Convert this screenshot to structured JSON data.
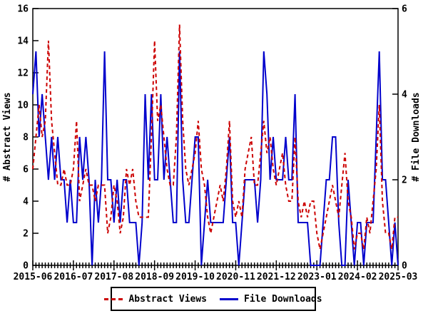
{
  "colors": {
    "abstract_views": "#cc0000",
    "file_downloads": "#0000cc",
    "axis": "#000000",
    "background": "#ffffff"
  },
  "chart_data": {
    "type": "line",
    "title": "",
    "x_axis": {
      "start_month": "2015-06",
      "end_month": "2025-03",
      "interval": "monthly",
      "n_points": 118,
      "tick_every_months": 13,
      "tick_labels": [
        "2015-06",
        "2016-07",
        "2017-08",
        "2018-09",
        "2019-10",
        "2020-11",
        "2021-12",
        "2023-01",
        "2024-02",
        "2025-03"
      ]
    },
    "y_left": {
      "label": "# Abstract Views",
      "min": 0,
      "max": 16,
      "ticks": [
        0,
        2,
        4,
        6,
        8,
        10,
        12,
        14,
        16
      ]
    },
    "y_right": {
      "label": "# File Downloads",
      "min": 0,
      "max": 6,
      "ticks": [
        0,
        2,
        4,
        6
      ]
    },
    "grid": false,
    "legend": {
      "position": "bottom",
      "border": true
    },
    "series": [
      {
        "name": "Abstract Views",
        "axis": "left",
        "style": "dashed",
        "color": "#cc0000",
        "values": [
          6,
          8,
          10,
          8,
          9,
          14,
          9,
          7,
          5,
          5,
          6,
          5,
          5,
          6,
          9,
          4,
          5,
          6,
          5,
          5,
          4,
          5,
          5,
          5,
          2,
          3,
          5,
          4,
          2,
          3,
          6,
          5,
          6,
          4,
          3,
          3,
          3,
          3,
          8,
          14,
          9,
          10,
          8,
          6,
          5,
          5,
          8,
          15,
          9,
          6,
          5,
          6,
          7,
          9,
          6,
          5,
          3,
          2,
          3,
          4,
          5,
          4,
          6,
          9,
          4,
          3,
          4,
          3,
          6,
          7,
          8,
          5,
          5,
          7,
          9,
          7,
          8,
          6,
          5,
          6,
          7,
          5,
          4,
          4,
          8,
          4,
          3,
          4,
          3,
          4,
          4,
          2,
          1,
          2,
          3,
          4,
          5,
          4,
          3,
          5,
          7,
          4,
          3,
          1,
          2,
          2,
          1,
          3,
          2,
          4,
          6,
          10,
          4,
          2,
          2,
          1,
          3,
          3
        ]
      },
      {
        "name": "File Downloads",
        "axis": "right",
        "style": "solid",
        "color": "#0000cc",
        "values": [
          4,
          5,
          3,
          4,
          3,
          2,
          3,
          2,
          3,
          2,
          2,
          1,
          2,
          1,
          1,
          3,
          2,
          3,
          2,
          0,
          2,
          1,
          2,
          5,
          2,
          2,
          1,
          2,
          1,
          2,
          2,
          1,
          1,
          1,
          0,
          1,
          4,
          2,
          4,
          2,
          2,
          4,
          2,
          3,
          2,
          1,
          1,
          5,
          2,
          1,
          1,
          2,
          3,
          3,
          0,
          1,
          2,
          1,
          1,
          1,
          1,
          1,
          2,
          3,
          1,
          1,
          0,
          1,
          2,
          2,
          2,
          2,
          1,
          2,
          5,
          4,
          2,
          3,
          2,
          2,
          2,
          3,
          2,
          2,
          4,
          1,
          1,
          1,
          1,
          0,
          0,
          0,
          0,
          1,
          2,
          2,
          3,
          3,
          1,
          0,
          0,
          2,
          1,
          0,
          1,
          1,
          0,
          1,
          1,
          1,
          3,
          5,
          2,
          2,
          1,
          0,
          1,
          0
        ]
      }
    ]
  },
  "legend_labels": {
    "abstract_views": "Abstract Views",
    "file_downloads": "File Downloads"
  }
}
